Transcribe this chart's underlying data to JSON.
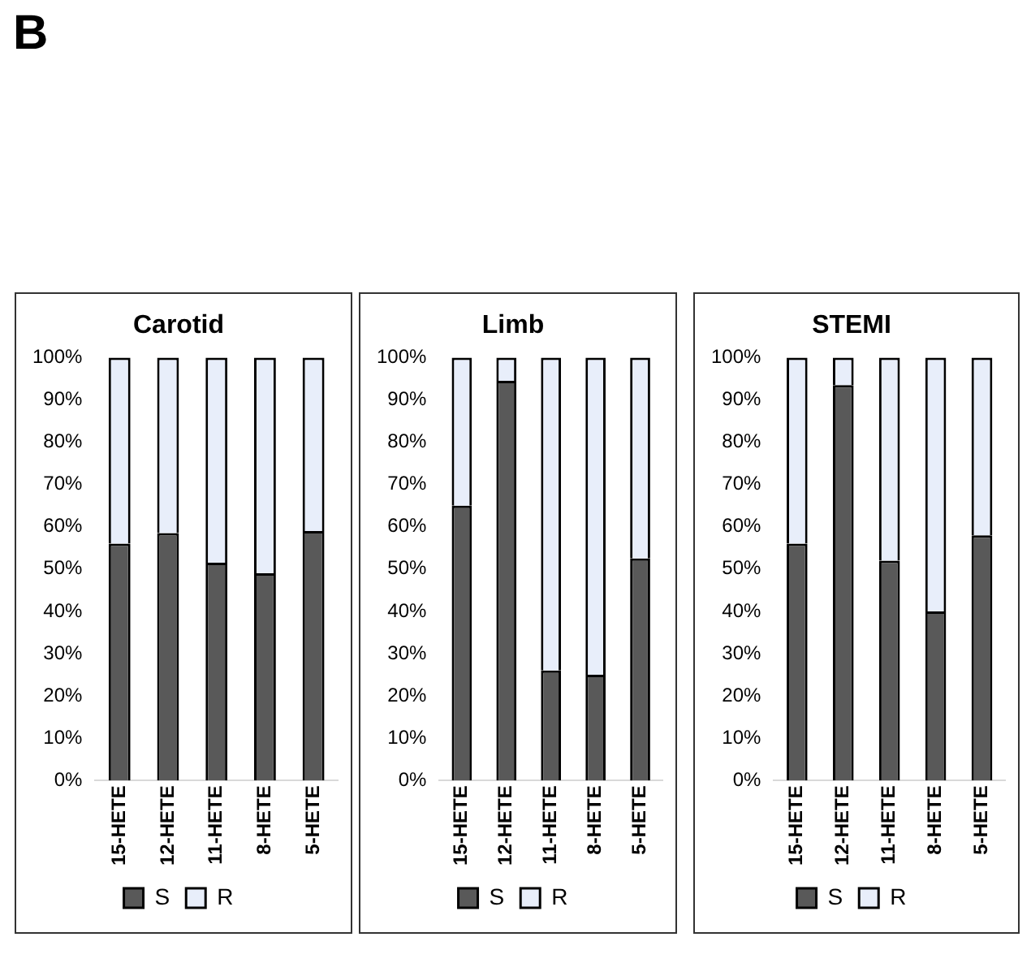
{
  "chart_data": [
    {
      "type": "bar",
      "title": "Carotid",
      "annotations": [
        "B"
      ],
      "categories": [
        "15-HETE",
        "12-HETE",
        "11-HETE",
        "8-HETE",
        "5-HETE"
      ],
      "stacked": true,
      "legend": "bottom",
      "grid": false,
      "ylim": [
        0,
        100
      ],
      "yticks": [
        {
          "value": 0,
          "label": "0%"
        },
        {
          "value": 10,
          "label": "10%"
        },
        {
          "value": 20,
          "label": "20%"
        },
        {
          "value": 30,
          "label": "30%"
        },
        {
          "value": 40,
          "label": "40%"
        },
        {
          "value": 50,
          "label": "50%"
        },
        {
          "value": 60,
          "label": "60%"
        },
        {
          "value": 70,
          "label": "70%"
        },
        {
          "value": 80,
          "label": "80%"
        },
        {
          "value": 90,
          "label": "90%"
        },
        {
          "value": 100,
          "label": "100%"
        }
      ],
      "series": [
        {
          "name": "S",
          "color": "#595959",
          "values": [
            56,
            58.5,
            51.5,
            49,
            59
          ]
        },
        {
          "name": "R",
          "color": "#e8eefa",
          "values": [
            44,
            41.5,
            48.5,
            51,
            41
          ]
        }
      ]
    },
    {
      "type": "bar",
      "title": "Limb",
      "categories": [
        "15-HETE",
        "12-HETE",
        "11-HETE",
        "8-HETE",
        "5-HETE"
      ],
      "stacked": true,
      "legend": "bottom",
      "grid": false,
      "ylim": [
        0,
        100
      ],
      "yticks": [
        {
          "value": 0,
          "label": "0%"
        },
        {
          "value": 10,
          "label": "10%"
        },
        {
          "value": 20,
          "label": "20%"
        },
        {
          "value": 30,
          "label": "30%"
        },
        {
          "value": 40,
          "label": "40%"
        },
        {
          "value": 50,
          "label": "50%"
        },
        {
          "value": 60,
          "label": "60%"
        },
        {
          "value": 70,
          "label": "70%"
        },
        {
          "value": 80,
          "label": "80%"
        },
        {
          "value": 90,
          "label": "90%"
        },
        {
          "value": 100,
          "label": "100%"
        }
      ],
      "series": [
        {
          "name": "S",
          "color": "#595959",
          "values": [
            65,
            94.5,
            26,
            25,
            52.5
          ]
        },
        {
          "name": "R",
          "color": "#e8eefa",
          "values": [
            35,
            5.5,
            74,
            75,
            47.5
          ]
        }
      ]
    },
    {
      "type": "bar",
      "title": "STEMI",
      "categories": [
        "15-HETE",
        "12-HETE",
        "11-HETE",
        "8-HETE",
        "5-HETE"
      ],
      "stacked": true,
      "legend": "bottom",
      "grid": false,
      "ylim": [
        0,
        100
      ],
      "yticks": [
        {
          "value": 0,
          "label": "0%"
        },
        {
          "value": 10,
          "label": "10%"
        },
        {
          "value": 20,
          "label": "20%"
        },
        {
          "value": 30,
          "label": "30%"
        },
        {
          "value": 40,
          "label": "40%"
        },
        {
          "value": 50,
          "label": "50%"
        },
        {
          "value": 60,
          "label": "60%"
        },
        {
          "value": 70,
          "label": "70%"
        },
        {
          "value": 80,
          "label": "80%"
        },
        {
          "value": 90,
          "label": "90%"
        },
        {
          "value": 100,
          "label": "100%"
        }
      ],
      "series": [
        {
          "name": "S",
          "color": "#595959",
          "values": [
            56,
            93.5,
            52,
            40,
            58
          ]
        },
        {
          "name": "R",
          "color": "#e8eefa",
          "values": [
            44,
            6.5,
            48,
            60,
            42
          ]
        }
      ]
    }
  ]
}
